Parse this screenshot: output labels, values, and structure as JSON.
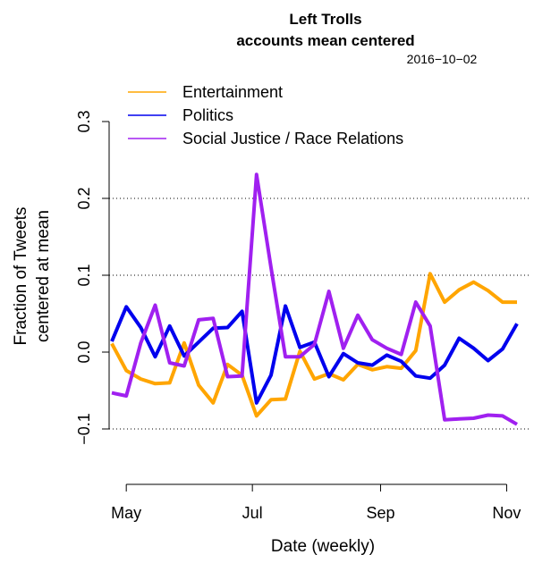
{
  "chart_data": {
    "type": "line",
    "title": "Left Trolls",
    "subtitle": "accounts mean centered",
    "date_label": "2016−10−02",
    "xlabel": "Date (weekly)",
    "ylabel_lines": [
      "Fraction of Tweets",
      "centered at mean"
    ],
    "x": [
      "2016-04-24",
      "2016-05-01",
      "2016-05-08",
      "2016-05-15",
      "2016-05-22",
      "2016-05-29",
      "2016-06-05",
      "2016-06-12",
      "2016-06-19",
      "2016-06-26",
      "2016-07-03",
      "2016-07-10",
      "2016-07-17",
      "2016-07-24",
      "2016-07-31",
      "2016-08-07",
      "2016-08-14",
      "2016-08-21",
      "2016-08-28",
      "2016-09-04",
      "2016-09-11",
      "2016-09-18",
      "2016-09-25",
      "2016-10-02",
      "2016-10-09",
      "2016-10-16",
      "2016-10-23",
      "2016-10-30",
      "2016-11-06"
    ],
    "xticks": [
      {
        "date": "2016-05-01",
        "label": "May"
      },
      {
        "date": "2016-07-01",
        "label": "Jul"
      },
      {
        "date": "2016-09-01",
        "label": "Sep"
      },
      {
        "date": "2016-11-01",
        "label": "Nov"
      }
    ],
    "ylim": [
      -0.1,
      0.3
    ],
    "yticks": [
      {
        "value": -0.1,
        "label": "−0.1"
      },
      {
        "value": 0.0,
        "label": "0.0"
      },
      {
        "value": 0.1,
        "label": "0.1"
      },
      {
        "value": 0.2,
        "label": "0.2"
      },
      {
        "value": 0.3,
        "label": "0.3"
      }
    ],
    "grid": "horizontal dotted at 0.1 and 0.2; horizontal dotted at -0.1",
    "legend_position": "top-left",
    "series": [
      {
        "name": "Entertainment",
        "color": "#FFA500",
        "values": [
          0.011,
          -0.024,
          -0.035,
          -0.041,
          -0.04,
          0.012,
          -0.043,
          -0.066,
          -0.016,
          -0.03,
          -0.083,
          -0.062,
          -0.061,
          0.001,
          -0.035,
          -0.028,
          -0.036,
          -0.016,
          -0.023,
          -0.019,
          -0.021,
          0.002,
          0.102,
          0.065,
          0.081,
          0.091,
          0.08,
          0.065,
          0.065
        ]
      },
      {
        "name": "Politics",
        "color": "#0000EE",
        "values": [
          0.014,
          0.059,
          0.032,
          -0.006,
          0.034,
          -0.005,
          0.013,
          0.031,
          0.032,
          0.053,
          -0.066,
          -0.03,
          0.06,
          0.006,
          0.013,
          -0.032,
          -0.002,
          -0.014,
          -0.017,
          -0.004,
          -0.012,
          -0.031,
          -0.034,
          -0.017,
          0.018,
          0.005,
          -0.011,
          0.004,
          0.037
        ]
      },
      {
        "name": "Social Justice / Race Relations",
        "color": "#A020F0",
        "values": [
          -0.053,
          -0.057,
          0.012,
          0.061,
          -0.014,
          -0.018,
          0.042,
          0.044,
          -0.032,
          -0.031,
          0.231,
          0.11,
          -0.006,
          -0.006,
          0.01,
          0.079,
          0.005,
          0.048,
          0.016,
          0.005,
          -0.003,
          0.065,
          0.034,
          -0.088,
          -0.087,
          -0.086,
          -0.082,
          -0.083,
          -0.094
        ]
      }
    ]
  }
}
